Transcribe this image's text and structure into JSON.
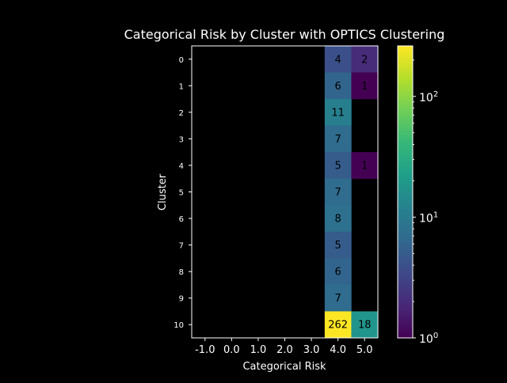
{
  "chart_data": {
    "type": "heatmap",
    "title": "Categorical Risk by Cluster with OPTICS Clustering",
    "xlabel": "Categorical Risk",
    "ylabel": "Cluster",
    "x_categories": [
      "-1.0",
      "0.0",
      "1.0",
      "2.0",
      "3.0",
      "4.0",
      "5.0"
    ],
    "y_categories": [
      "0",
      "1",
      "2",
      "3",
      "4",
      "5",
      "6",
      "7",
      "8",
      "9",
      "10"
    ],
    "cells": [
      {
        "x": "4.0",
        "y": "0",
        "value": 4
      },
      {
        "x": "5.0",
        "y": "0",
        "value": 2
      },
      {
        "x": "4.0",
        "y": "1",
        "value": 6
      },
      {
        "x": "5.0",
        "y": "1",
        "value": 1
      },
      {
        "x": "4.0",
        "y": "2",
        "value": 11
      },
      {
        "x": "4.0",
        "y": "3",
        "value": 7
      },
      {
        "x": "4.0",
        "y": "4",
        "value": 5
      },
      {
        "x": "5.0",
        "y": "4",
        "value": 1
      },
      {
        "x": "4.0",
        "y": "5",
        "value": 7
      },
      {
        "x": "4.0",
        "y": "6",
        "value": 8
      },
      {
        "x": "4.0",
        "y": "7",
        "value": 5
      },
      {
        "x": "4.0",
        "y": "8",
        "value": 6
      },
      {
        "x": "4.0",
        "y": "9",
        "value": 7
      },
      {
        "x": "4.0",
        "y": "10",
        "value": 262
      },
      {
        "x": "5.0",
        "y": "10",
        "value": 18
      }
    ],
    "colorbar": {
      "scale": "log",
      "colormap": "viridis",
      "range": [
        1,
        262
      ],
      "ticks": [
        {
          "value": 1,
          "base": "10",
          "exp": "0"
        },
        {
          "value": 10,
          "base": "10",
          "exp": "1"
        },
        {
          "value": 100,
          "base": "10",
          "exp": "2"
        }
      ]
    },
    "grid": false,
    "background": "#000000",
    "foreground": "#ffffff"
  }
}
